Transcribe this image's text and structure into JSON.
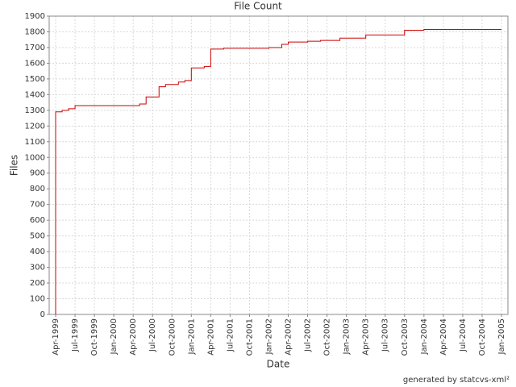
{
  "chart_data": {
    "type": "step",
    "title": "File Count",
    "x_label": "Date",
    "y_label": "Files",
    "footer": "generated by statcvs-xml²",
    "x": [
      "1999-04",
      "1999-04",
      "1999-05",
      "1999-06",
      "1999-07",
      "2000-05",
      "2000-06",
      "2000-08",
      "2000-09",
      "2000-11",
      "2000-12",
      "2001-01",
      "2001-03",
      "2001-04",
      "2001-06",
      "2002-01",
      "2002-03",
      "2002-04",
      "2002-07",
      "2002-09",
      "2002-12",
      "2003-04",
      "2003-10",
      "2004-01",
      "2005-01"
    ],
    "values": [
      0,
      1290,
      1300,
      1310,
      1330,
      1340,
      1385,
      1450,
      1465,
      1480,
      1490,
      1570,
      1580,
      1690,
      1695,
      1700,
      1720,
      1735,
      1740,
      1745,
      1760,
      1780,
      1810,
      1815,
      1815
    ],
    "color": "#cc0000",
    "xlim": [
      "1999-03",
      "2005-02"
    ],
    "xticks": [
      {
        "value": "1999-04",
        "label": "Apr-1999"
      },
      {
        "value": "1999-07",
        "label": "Jul-1999"
      },
      {
        "value": "1999-10",
        "label": "Oct-1999"
      },
      {
        "value": "2000-01",
        "label": "Jan-2000"
      },
      {
        "value": "2000-04",
        "label": "Apr-2000"
      },
      {
        "value": "2000-07",
        "label": "Jul-2000"
      },
      {
        "value": "2000-10",
        "label": "Oct-2000"
      },
      {
        "value": "2001-01",
        "label": "Jan-2001"
      },
      {
        "value": "2001-04",
        "label": "Apr-2001"
      },
      {
        "value": "2001-07",
        "label": "Jul-2001"
      },
      {
        "value": "2001-10",
        "label": "Oct-2001"
      },
      {
        "value": "2002-01",
        "label": "Jan-2002"
      },
      {
        "value": "2002-04",
        "label": "Apr-2002"
      },
      {
        "value": "2002-07",
        "label": "Jul-2002"
      },
      {
        "value": "2002-10",
        "label": "Oct-2002"
      },
      {
        "value": "2003-01",
        "label": "Jan-2003"
      },
      {
        "value": "2003-04",
        "label": "Apr-2003"
      },
      {
        "value": "2003-07",
        "label": "Jul-2003"
      },
      {
        "value": "2003-10",
        "label": "Oct-2003"
      },
      {
        "value": "2004-01",
        "label": "Jan-2004"
      },
      {
        "value": "2004-04",
        "label": "Apr-2004"
      },
      {
        "value": "2004-07",
        "label": "Jul-2004"
      },
      {
        "value": "2004-10",
        "label": "Oct-2004"
      },
      {
        "value": "2005-01",
        "label": "Jan-2005"
      }
    ],
    "ylim": [
      0,
      1900
    ],
    "yticks": [
      0,
      100,
      200,
      300,
      400,
      500,
      600,
      700,
      800,
      900,
      1000,
      1100,
      1200,
      1300,
      1400,
      1500,
      1600,
      1700,
      1800,
      1900
    ],
    "grid": true
  }
}
